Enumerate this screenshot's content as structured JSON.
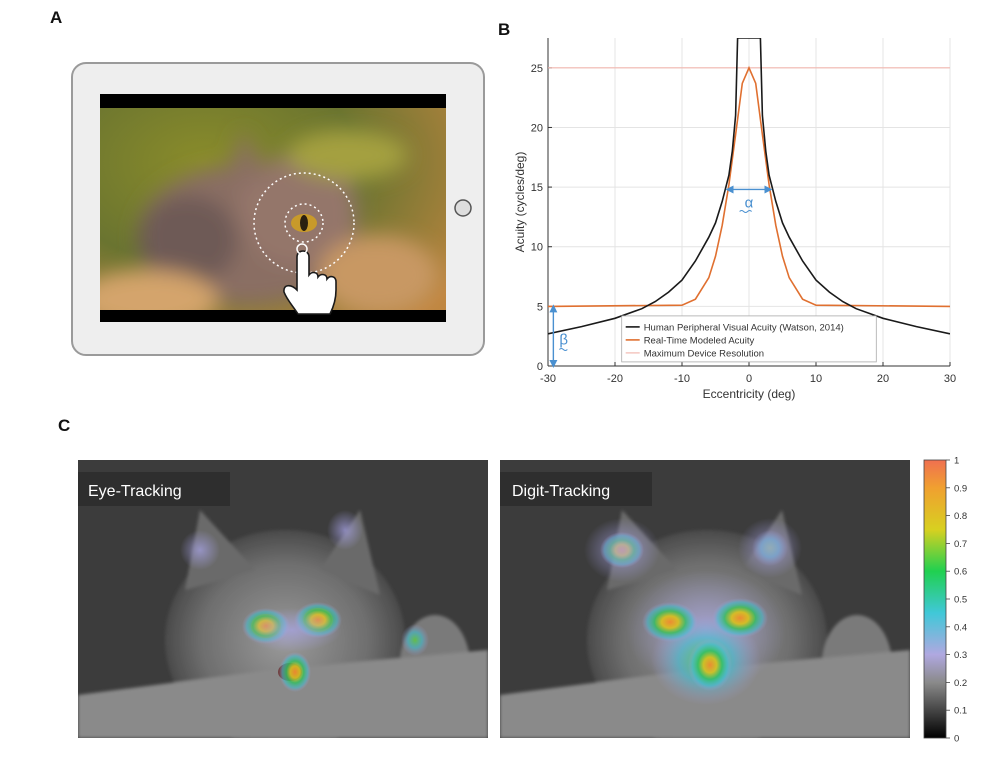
{
  "panels": {
    "a": {
      "letter": "A"
    },
    "b": {
      "letter": "B"
    },
    "c": {
      "letter": "C"
    }
  },
  "heatmaps": {
    "left_label": "Eye-Tracking",
    "right_label": "Digit-Tracking"
  },
  "colors": {
    "human": "#1a1a1a",
    "modeled": "#e07030",
    "device": "#f2b8b0",
    "annotation": "#4a90d0"
  },
  "chart_data": [
    {
      "type": "line",
      "xlabel": "Eccentricity (deg)",
      "ylabel": "Acuity (cycles/deg)",
      "xlim": [
        -30,
        30
      ],
      "ylim": [
        0,
        27.5
      ],
      "xticks": [
        -30,
        -20,
        -10,
        0,
        10,
        20,
        30
      ],
      "yticks": [
        0,
        5,
        10,
        15,
        20,
        25
      ],
      "grid": true,
      "legend": "bottom-right",
      "annotations": {
        "alpha": "α",
        "beta": "β"
      },
      "series": [
        {
          "name": "Human Peripheral Visual Acuity (Watson, 2014)",
          "x": [
            -30,
            -25,
            -20,
            -16,
            -14,
            -12,
            -10,
            -8,
            -6,
            -5,
            -4,
            -3,
            -2.5,
            -2,
            -1.7,
            0,
            1.7,
            2,
            2.5,
            3,
            4,
            5,
            6,
            8,
            10,
            12,
            14,
            16,
            20,
            25,
            30
          ],
          "y": [
            2.7,
            3.3,
            4.0,
            4.8,
            5.4,
            6.2,
            7.2,
            8.8,
            10.8,
            12.0,
            13.8,
            16.0,
            18.0,
            21.0,
            27.5,
            27.5,
            27.5,
            21.0,
            18.0,
            16.0,
            13.8,
            12.0,
            10.8,
            8.8,
            7.2,
            6.2,
            5.4,
            4.8,
            4.0,
            3.3,
            2.7
          ]
        },
        {
          "name": "Real-Time Modeled Acuity",
          "x": [
            -30,
            -10,
            -8,
            -6,
            -5,
            -4,
            -3,
            -2,
            -1,
            0,
            1,
            2,
            3,
            4,
            5,
            6,
            8,
            10,
            30
          ],
          "y": [
            5,
            5.1,
            5.6,
            7.4,
            9.2,
            11.8,
            15.2,
            19.4,
            23.7,
            25,
            23.7,
            19.4,
            15.2,
            11.8,
            9.2,
            7.4,
            5.6,
            5.1,
            5
          ]
        },
        {
          "name": "Maximum Device Resolution",
          "x": [
            -30,
            30
          ],
          "y": [
            25,
            25
          ]
        }
      ]
    },
    {
      "type": "heatmap",
      "colorbar_ticks": [
        "1",
        "0.9",
        "0.8",
        "0.7",
        "0.6",
        "0.5",
        "0.4",
        "0.3",
        "0.2",
        "0.1",
        "0"
      ],
      "colorbar_range": [
        0,
        1
      ]
    }
  ]
}
